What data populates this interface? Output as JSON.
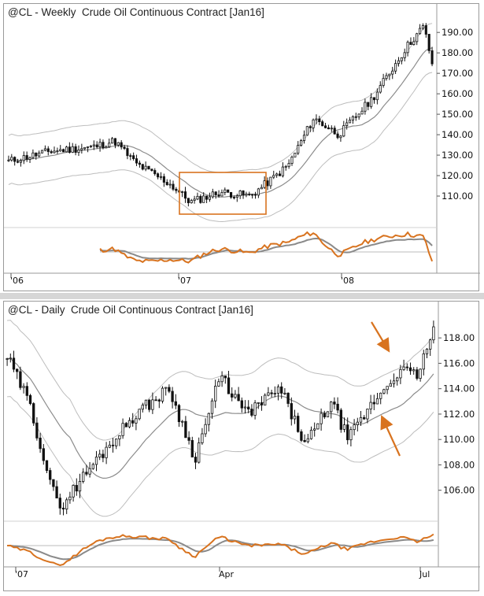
{
  "colors": {
    "candle": "#111111",
    "band": "#bdbdbd",
    "mid_band": "#8c8c8c",
    "oscillator": "#d8731f",
    "signal": "#8a8a8a",
    "annotation": "#d8731f"
  },
  "chart_data": [
    {
      "type": "candlestick",
      "title": "@CL - Weekly  Crude Oil Continuous Contract [Jan16]",
      "yticks": [
        "190.00",
        "180.00",
        "170.00",
        "160.00",
        "150.00",
        "140.00",
        "130.00",
        "120.00",
        "110.00"
      ],
      "ylim": [
        100,
        197
      ],
      "xticks": [
        "'06",
        "'07",
        "'08"
      ],
      "annotation": "highlight box",
      "approx_close_path": [
        {
          "t": 0.0,
          "price": 127
        },
        {
          "t": 0.1,
          "price": 132
        },
        {
          "t": 0.2,
          "price": 134
        },
        {
          "t": 0.25,
          "price": 137
        },
        {
          "t": 0.3,
          "price": 126
        },
        {
          "t": 0.38,
          "price": 116
        },
        {
          "t": 0.43,
          "price": 107
        },
        {
          "t": 0.5,
          "price": 112
        },
        {
          "t": 0.57,
          "price": 110
        },
        {
          "t": 0.62,
          "price": 118
        },
        {
          "t": 0.66,
          "price": 125
        },
        {
          "t": 0.72,
          "price": 148
        },
        {
          "t": 0.78,
          "price": 140
        },
        {
          "t": 0.86,
          "price": 158
        },
        {
          "t": 0.94,
          "price": 183
        },
        {
          "t": 0.98,
          "price": 193
        },
        {
          "t": 1.0,
          "price": 175
        }
      ]
    },
    {
      "type": "candlestick",
      "title": "@CL - Daily  Crude Oil Continuous Contract [Jan16]",
      "yticks": [
        "118.00",
        "116.00",
        "114.00",
        "112.00",
        "110.00",
        "108.00",
        "106.00"
      ],
      "ylim": [
        103.5,
        119.5
      ],
      "xticks": [
        "'07",
        "Apr",
        "Jul"
      ],
      "annotation": "two arrows pointing at late price action",
      "approx_close_path": [
        {
          "t": 0.0,
          "price": 116.5
        },
        {
          "t": 0.05,
          "price": 113
        },
        {
          "t": 0.12,
          "price": 104.5
        },
        {
          "t": 0.2,
          "price": 108
        },
        {
          "t": 0.3,
          "price": 112
        },
        {
          "t": 0.38,
          "price": 114
        },
        {
          "t": 0.44,
          "price": 108.5
        },
        {
          "t": 0.5,
          "price": 115
        },
        {
          "t": 0.56,
          "price": 112
        },
        {
          "t": 0.64,
          "price": 114
        },
        {
          "t": 0.7,
          "price": 109.5
        },
        {
          "t": 0.76,
          "price": 113
        },
        {
          "t": 0.8,
          "price": 110
        },
        {
          "t": 0.86,
          "price": 113
        },
        {
          "t": 0.92,
          "price": 115.5
        },
        {
          "t": 0.96,
          "price": 115
        },
        {
          "t": 1.0,
          "price": 118.5
        }
      ]
    }
  ]
}
